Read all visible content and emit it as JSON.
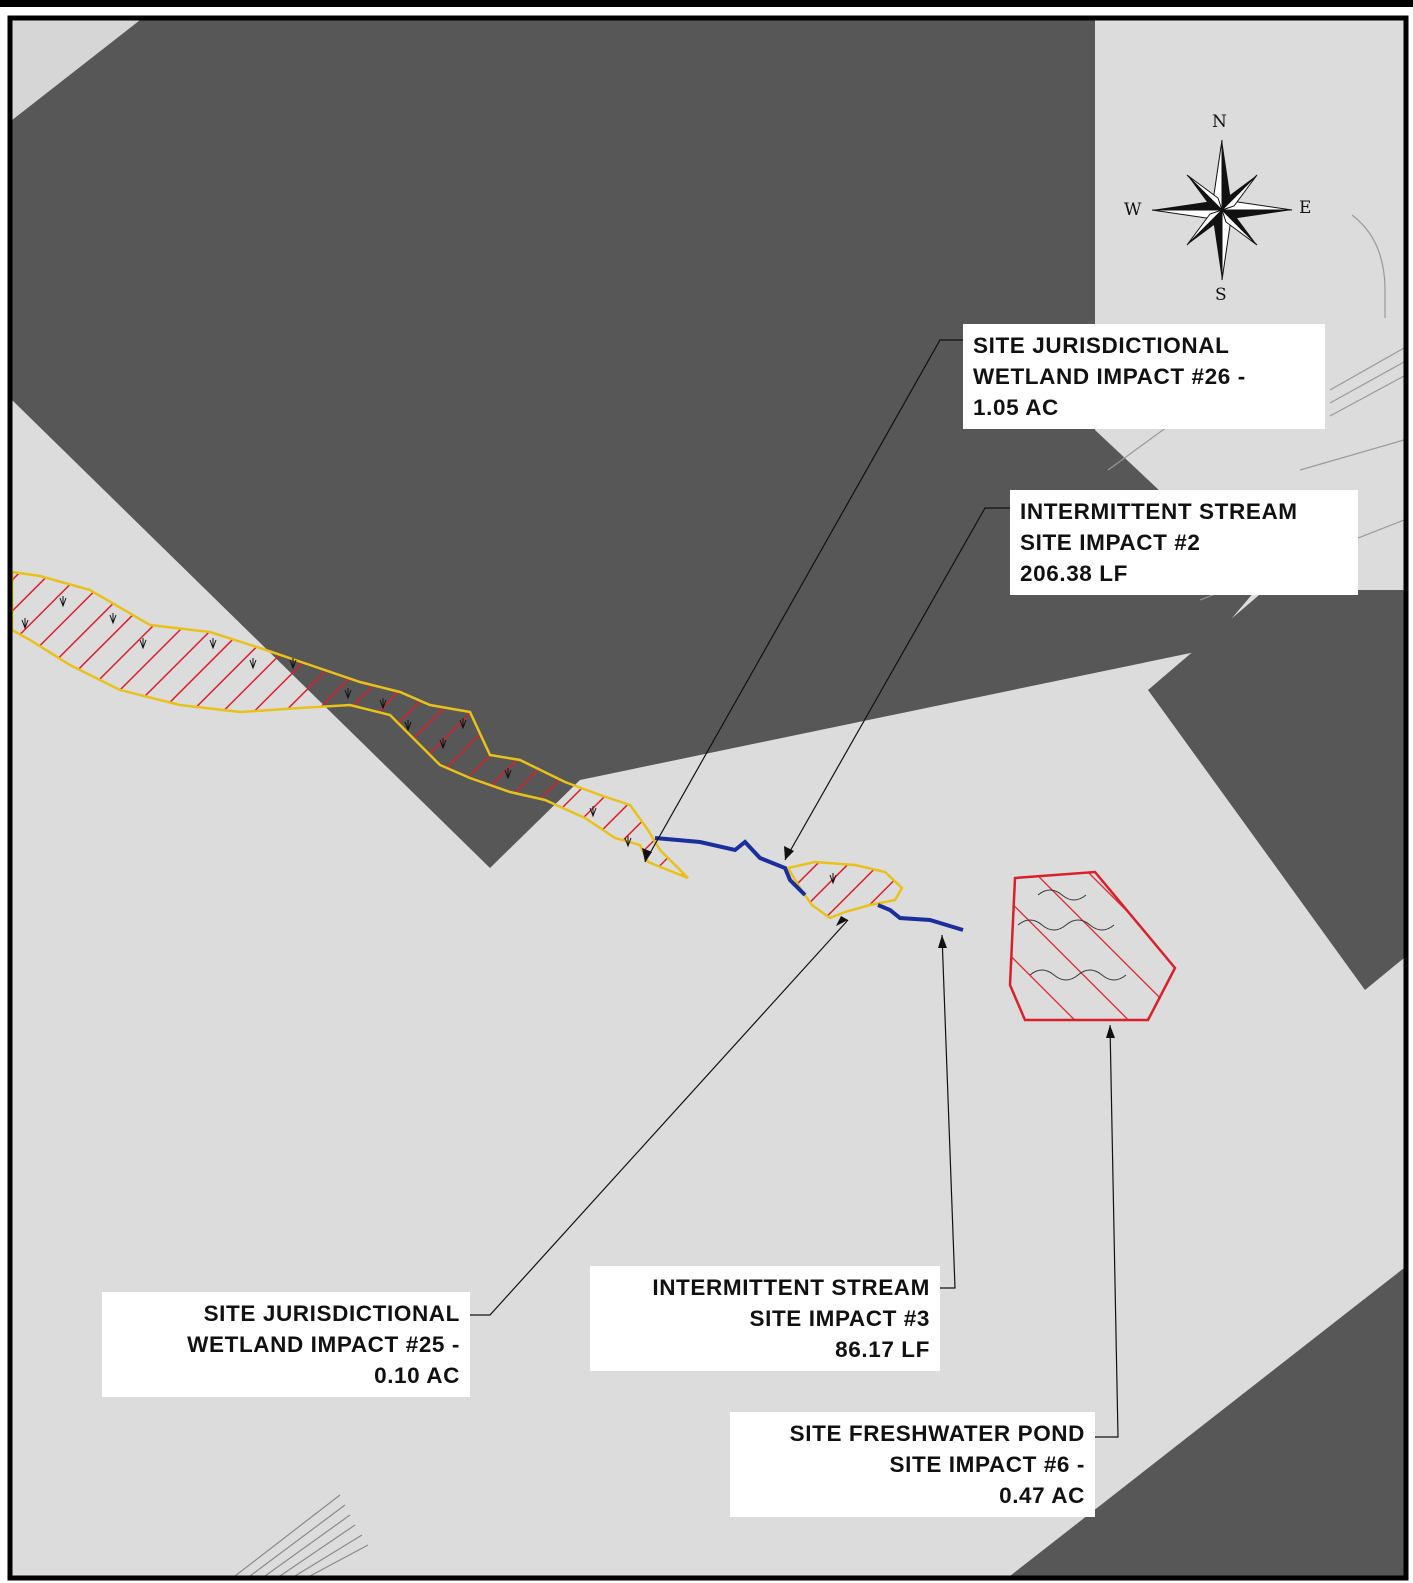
{
  "compass": {
    "north": "N",
    "south": "S",
    "east": "E",
    "west": "W"
  },
  "callouts": {
    "wetland_26": [
      "SITE JURISDICTIONAL",
      "WETLAND IMPACT #26 -",
      "1.05 AC"
    ],
    "stream_2": [
      "INTERMITTENT STREAM",
      "SITE IMPACT #2",
      "206.38 LF"
    ],
    "wetland_25": [
      "SITE JURISDICTIONAL",
      "WETLAND IMPACT #25 -",
      "0.10 AC"
    ],
    "stream_3": [
      "INTERMITTENT STREAM",
      "SITE IMPACT #3",
      "86.17 LF"
    ],
    "pond_6": [
      "SITE FRESHWATER POND",
      "SITE IMPACT #6 -",
      "0.47 AC"
    ]
  },
  "colors": {
    "background": "#dcdcdc",
    "building": "#575757",
    "wetland_outline": "#e8c21a",
    "hatch": "#d8202a",
    "stream": "#1a2e9c",
    "pond_outline": "#d8202a",
    "frame": "#000000"
  }
}
